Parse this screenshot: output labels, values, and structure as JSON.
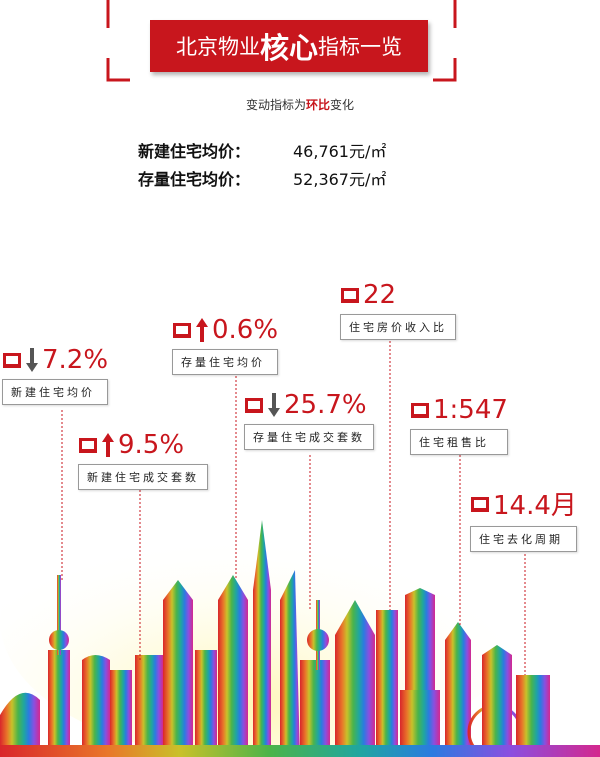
{
  "header": {
    "title_a": "北京物业",
    "title_b": "核心",
    "title_c": "指标一览",
    "subtitle_a": "变动指标为",
    "subtitle_b": "环比",
    "subtitle_c": "变化"
  },
  "prices": [
    {
      "label": "新建住宅均价：",
      "value": "46,761元/㎡"
    },
    {
      "label": "存量住宅均价：",
      "value": "52,367元/㎡"
    }
  ],
  "indicators": [
    {
      "value": "7.2%",
      "label": "新建住宅均价"
    },
    {
      "value": "9.5%",
      "label": "新建住宅成交套数"
    },
    {
      "value": "0.6%",
      "label": "存量住宅均价"
    },
    {
      "value": "25.7%",
      "label": "存量住宅成交套数"
    },
    {
      "value": "22",
      "label": "住宅房价收入比"
    },
    {
      "value": "1:547",
      "label": "住宅租售比"
    },
    {
      "value": "14.4月",
      "label": "住宅去化周期"
    }
  ]
}
